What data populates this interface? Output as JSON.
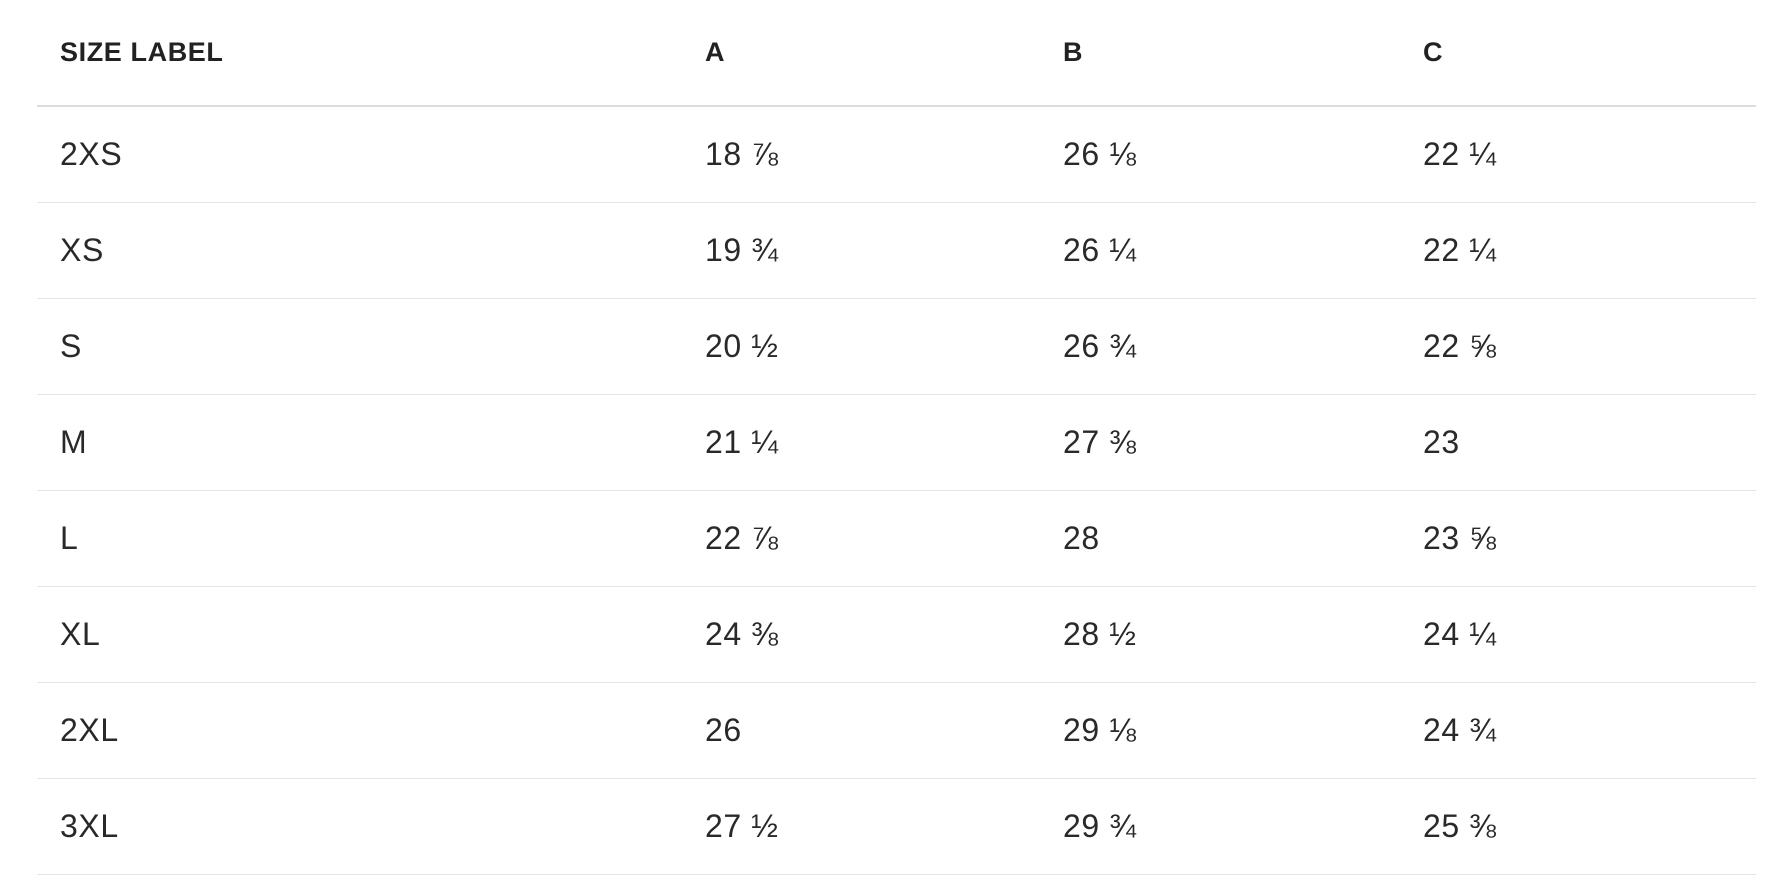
{
  "page": {
    "background": "#ffffff"
  },
  "colors": {
    "header_text": "#222222",
    "cell_text": "#27292b",
    "header_divider": "#dcdcdc",
    "row_divider": "#e4e4e4"
  },
  "table": {
    "columns": [
      {
        "id": "size",
        "label": "SIZE LABEL"
      },
      {
        "id": "a",
        "label": "A"
      },
      {
        "id": "b",
        "label": "B"
      },
      {
        "id": "c",
        "label": "C"
      }
    ],
    "rows": [
      {
        "size": "2XS",
        "a": "18 ⅞",
        "b": "26 ⅛",
        "c": "22 ¼"
      },
      {
        "size": "XS",
        "a": "19 ¾",
        "b": "26 ¼",
        "c": "22 ¼"
      },
      {
        "size": "S",
        "a": "20 ½",
        "b": "26 ¾",
        "c": "22 ⅝"
      },
      {
        "size": "M",
        "a": "21 ¼",
        "b": "27 ⅜",
        "c": "23"
      },
      {
        "size": "L",
        "a": "22 ⅞",
        "b": "28",
        "c": "23 ⅝"
      },
      {
        "size": "XL",
        "a": "24 ⅜",
        "b": "28 ½",
        "c": "24 ¼"
      },
      {
        "size": "2XL",
        "a": "26",
        "b": "29 ⅛",
        "c": "24 ¾"
      },
      {
        "size": "3XL",
        "a": "27 ½",
        "b": "29 ¾",
        "c": "25 ⅜"
      }
    ]
  }
}
